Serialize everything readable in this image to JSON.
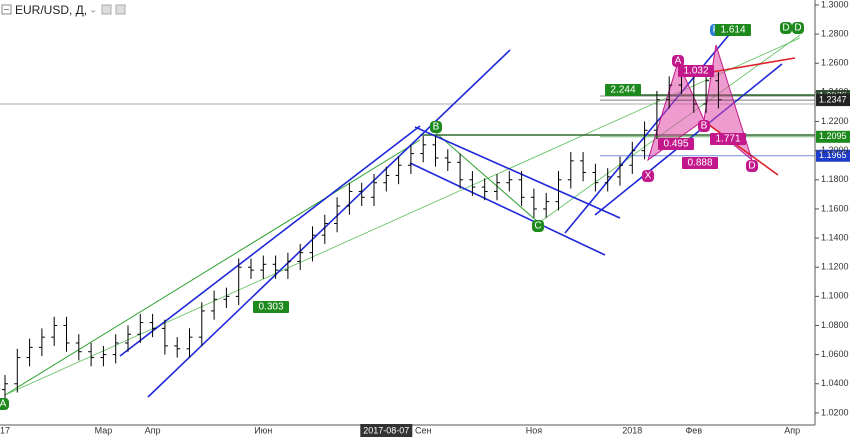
{
  "chart_data": {
    "type": "ohlc",
    "title": "EUR/USD, Д,",
    "categories": [
      "17",
      null,
      null,
      null,
      null,
      null,
      null,
      null,
      "Мар",
      null,
      null,
      null,
      "Апр",
      null,
      null,
      null,
      null,
      null,
      null,
      null,
      null,
      "Июн",
      null,
      null,
      null,
      null,
      null,
      null,
      null,
      null,
      null,
      "2017-08-07",
      null,
      null,
      "Сен",
      null,
      null,
      null,
      null,
      null,
      null,
      null,
      null,
      "Ноя",
      null,
      null,
      null,
      null,
      null,
      null,
      null,
      "2018",
      null,
      null,
      null,
      null,
      "Фев",
      null,
      null,
      null,
      null,
      null,
      null,
      null,
      "Апр",
      null
    ],
    "open": [
      1.036,
      1.04,
      1.058,
      1.065,
      1.072,
      1.08,
      1.068,
      1.062,
      1.058,
      1.06,
      1.068,
      1.074,
      1.082,
      1.078,
      1.066,
      1.064,
      1.072,
      1.09,
      1.098,
      1.1,
      1.12,
      1.118,
      1.122,
      1.118,
      1.124,
      1.13,
      1.142,
      1.15,
      1.162,
      1.172,
      1.168,
      1.178,
      1.183,
      1.19,
      1.198,
      1.204,
      1.195,
      1.192,
      1.18,
      1.175,
      1.172,
      1.178,
      1.18,
      1.168,
      1.16,
      1.165,
      1.18,
      1.193,
      1.185,
      1.178,
      1.182,
      1.19,
      1.2,
      1.214,
      1.235,
      1.245,
      1.252,
      1.232,
      1.248,
      null,
      null,
      null,
      null,
      null,
      null,
      null
    ],
    "high": [
      1.046,
      1.064,
      1.071,
      1.078,
      1.086,
      1.086,
      1.074,
      1.068,
      1.066,
      1.074,
      1.08,
      1.088,
      1.088,
      1.084,
      1.072,
      1.078,
      1.096,
      1.104,
      1.106,
      1.126,
      1.126,
      1.128,
      1.128,
      1.13,
      1.136,
      1.148,
      1.156,
      1.168,
      1.178,
      1.178,
      1.184,
      1.189,
      1.196,
      1.204,
      1.21,
      1.21,
      1.201,
      1.198,
      1.186,
      1.181,
      1.184,
      1.186,
      1.186,
      1.174,
      1.171,
      1.186,
      1.199,
      1.199,
      1.191,
      1.188,
      1.196,
      1.206,
      1.22,
      1.241,
      1.251,
      1.258,
      1.258,
      1.254,
      1.254,
      null,
      null,
      null,
      null,
      null,
      null,
      null
    ],
    "low": [
      1.03,
      1.034,
      1.052,
      1.059,
      1.066,
      1.062,
      1.056,
      1.052,
      1.052,
      1.054,
      1.062,
      1.068,
      1.072,
      1.06,
      1.058,
      1.058,
      1.066,
      1.084,
      1.092,
      1.094,
      1.112,
      1.112,
      1.112,
      1.112,
      1.118,
      1.124,
      1.136,
      1.144,
      1.156,
      1.162,
      1.162,
      1.172,
      1.177,
      1.184,
      1.192,
      1.189,
      1.186,
      1.174,
      1.169,
      1.166,
      1.166,
      1.172,
      1.162,
      1.154,
      1.154,
      1.159,
      1.174,
      1.179,
      1.172,
      1.172,
      1.176,
      1.184,
      1.194,
      1.208,
      1.229,
      1.239,
      1.226,
      1.226,
      1.229,
      null,
      null,
      null,
      null,
      null,
      null,
      null
    ],
    "close": [
      1.04,
      1.058,
      1.065,
      1.072,
      1.08,
      1.068,
      1.062,
      1.058,
      1.06,
      1.068,
      1.074,
      1.082,
      1.078,
      1.066,
      1.064,
      1.072,
      1.09,
      1.098,
      1.1,
      1.12,
      1.118,
      1.122,
      1.118,
      1.124,
      1.13,
      1.142,
      1.15,
      1.162,
      1.172,
      1.168,
      1.178,
      1.183,
      1.19,
      1.198,
      1.204,
      1.195,
      1.192,
      1.18,
      1.175,
      1.172,
      1.178,
      1.18,
      1.168,
      1.16,
      1.165,
      1.18,
      1.193,
      1.185,
      1.178,
      1.182,
      1.19,
      1.2,
      1.214,
      1.235,
      1.245,
      1.252,
      1.232,
      1.248,
      1.235,
      null,
      null,
      null,
      null,
      null,
      null,
      null
    ],
    "color": "#000000",
    "ylim": [
      1.0117,
      1.3034
    ],
    "yticks": [
      {
        "value": 1.02,
        "label": "1.0200"
      },
      {
        "value": 1.04,
        "label": "1.0400"
      },
      {
        "value": 1.06,
        "label": "1.0600"
      },
      {
        "value": 1.08,
        "label": "1.0800"
      },
      {
        "value": 1.1,
        "label": "1.1000"
      },
      {
        "value": 1.12,
        "label": "1.1200"
      },
      {
        "value": 1.14,
        "label": "1.1400"
      },
      {
        "value": 1.16,
        "label": "1.1600"
      },
      {
        "value": 1.18,
        "label": "1.1800"
      },
      {
        "value": 1.2,
        "label": "1.2000"
      },
      {
        "value": 1.22,
        "label": "1.2200"
      },
      {
        "value": 1.24,
        "label": "1.2400"
      },
      {
        "value": 1.26,
        "label": "1.2600"
      },
      {
        "value": 1.28,
        "label": "1.2800"
      },
      {
        "value": 1.3,
        "label": "1.3000"
      }
    ],
    "price_labels": [
      {
        "value": 1.2375,
        "label": "1.2375",
        "color": "#2f4f2f"
      },
      {
        "value": 1.2347,
        "label": "1.2347",
        "color": "#222222"
      },
      {
        "value": 1.2095,
        "label": "1.2095",
        "color": "#1e8a1e"
      },
      {
        "value": 1.1965,
        "label": "1.1965",
        "color": "#1e3cc8"
      }
    ],
    "annotations": [
      {
        "text": "A",
        "color": "#1e8a1e"
      },
      {
        "text": "B",
        "color": "#1e8a1e"
      },
      {
        "text": "C",
        "color": "#1e8a1e"
      },
      {
        "text": "D",
        "color": "#1e8a1e"
      },
      {
        "text": "D",
        "color": "#1e8a1e"
      },
      {
        "text": "A",
        "color": "#c2188b"
      },
      {
        "text": "X",
        "color": "#c2188b"
      },
      {
        "text": "B",
        "color": "#c2188b"
      },
      {
        "text": "D",
        "color": "#c2188b"
      },
      {
        "text": "P",
        "color": "#2a7fd4"
      },
      {
        "text": "2.244",
        "color": "#1e8a1e"
      },
      {
        "text": "0.303",
        "color": "#1e8a1e"
      },
      {
        "text": "1.614",
        "color": "#1e8a1e"
      },
      {
        "text": "1.032",
        "color": "#c2188b"
      },
      {
        "text": "0.495",
        "color": "#c2188b"
      },
      {
        "text": "0.888",
        "color": "#c2188b"
      },
      {
        "text": "1.771",
        "color": "#c2188b"
      }
    ]
  }
}
